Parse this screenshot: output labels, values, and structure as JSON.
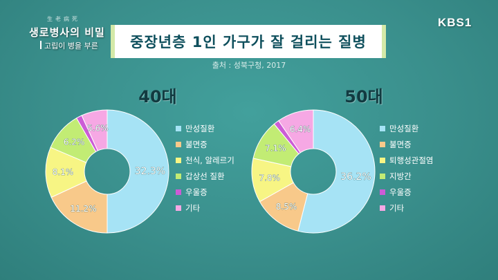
{
  "broadcast": {
    "channel": "KBS1",
    "show_title": "생로병사의 비밀",
    "show_small": "生老病死",
    "show_subtitle": "고립이 병을 부른"
  },
  "title": "중장년층 1인 가구가 잘 걸리는 질병",
  "source": "출처 : 성북구청, 2017",
  "colors": {
    "만성질환": "#a6e3f5",
    "불면증": "#f8c98a",
    "천식, 알레르기": "#f7f584",
    "갑상선 질환": "#c2ec74",
    "우울증": "#cc5cd6",
    "기타": "#f6a8e4",
    "퇴행성관절염": "#f7f584",
    "지방간": "#c2ec74"
  },
  "chart_data": [
    {
      "type": "pie",
      "title": "40대",
      "categories": [
        "만성질환",
        "불면증",
        "천식, 알레르기",
        "갑상선 질환",
        "우울증",
        "기타"
      ],
      "values": [
        50,
        18.1,
        13.3,
        10.3,
        1.5,
        6.8
      ],
      "labels": [
        "32.3%",
        "11.2%",
        "8.1%",
        "6.2%",
        "",
        "5.6%"
      ],
      "legend_position": "right"
    },
    {
      "type": "pie",
      "title": "50대",
      "categories": [
        "만성질환",
        "불면증",
        "퇴행성관절염",
        "지방간",
        "우울증",
        "기타"
      ],
      "values": [
        52.6,
        12.5,
        11.3,
        10.3,
        1.4,
        9.3
      ],
      "labels": [
        "36.2%",
        "8.5%",
        "7.8%",
        "7.1%",
        "",
        "6.4%"
      ],
      "legend_position": "right"
    }
  ]
}
